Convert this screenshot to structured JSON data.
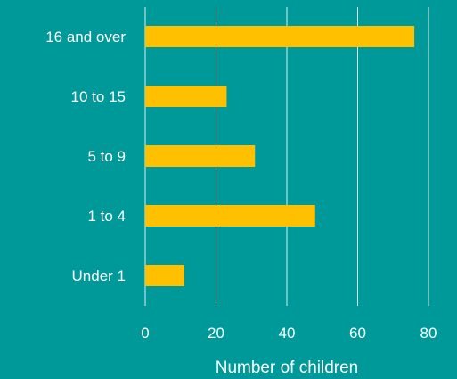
{
  "colors": {
    "background": "#009999",
    "bar": "#FFC000",
    "gridline": "#FFFFFF",
    "text": "#FFFFFF"
  },
  "chart_data": {
    "type": "bar",
    "orientation": "horizontal",
    "categories": [
      "16 and over",
      "10 to 15",
      "5 to 9",
      "1 to 4",
      "Under 1"
    ],
    "values": [
      76,
      23,
      31,
      48,
      11
    ],
    "title": "",
    "xlabel": "Number of children",
    "ylabel": "",
    "xlim": [
      0,
      80
    ],
    "xticks": [
      "0",
      "20",
      "40",
      "60",
      "80"
    ],
    "grid": true,
    "legend": "none"
  }
}
